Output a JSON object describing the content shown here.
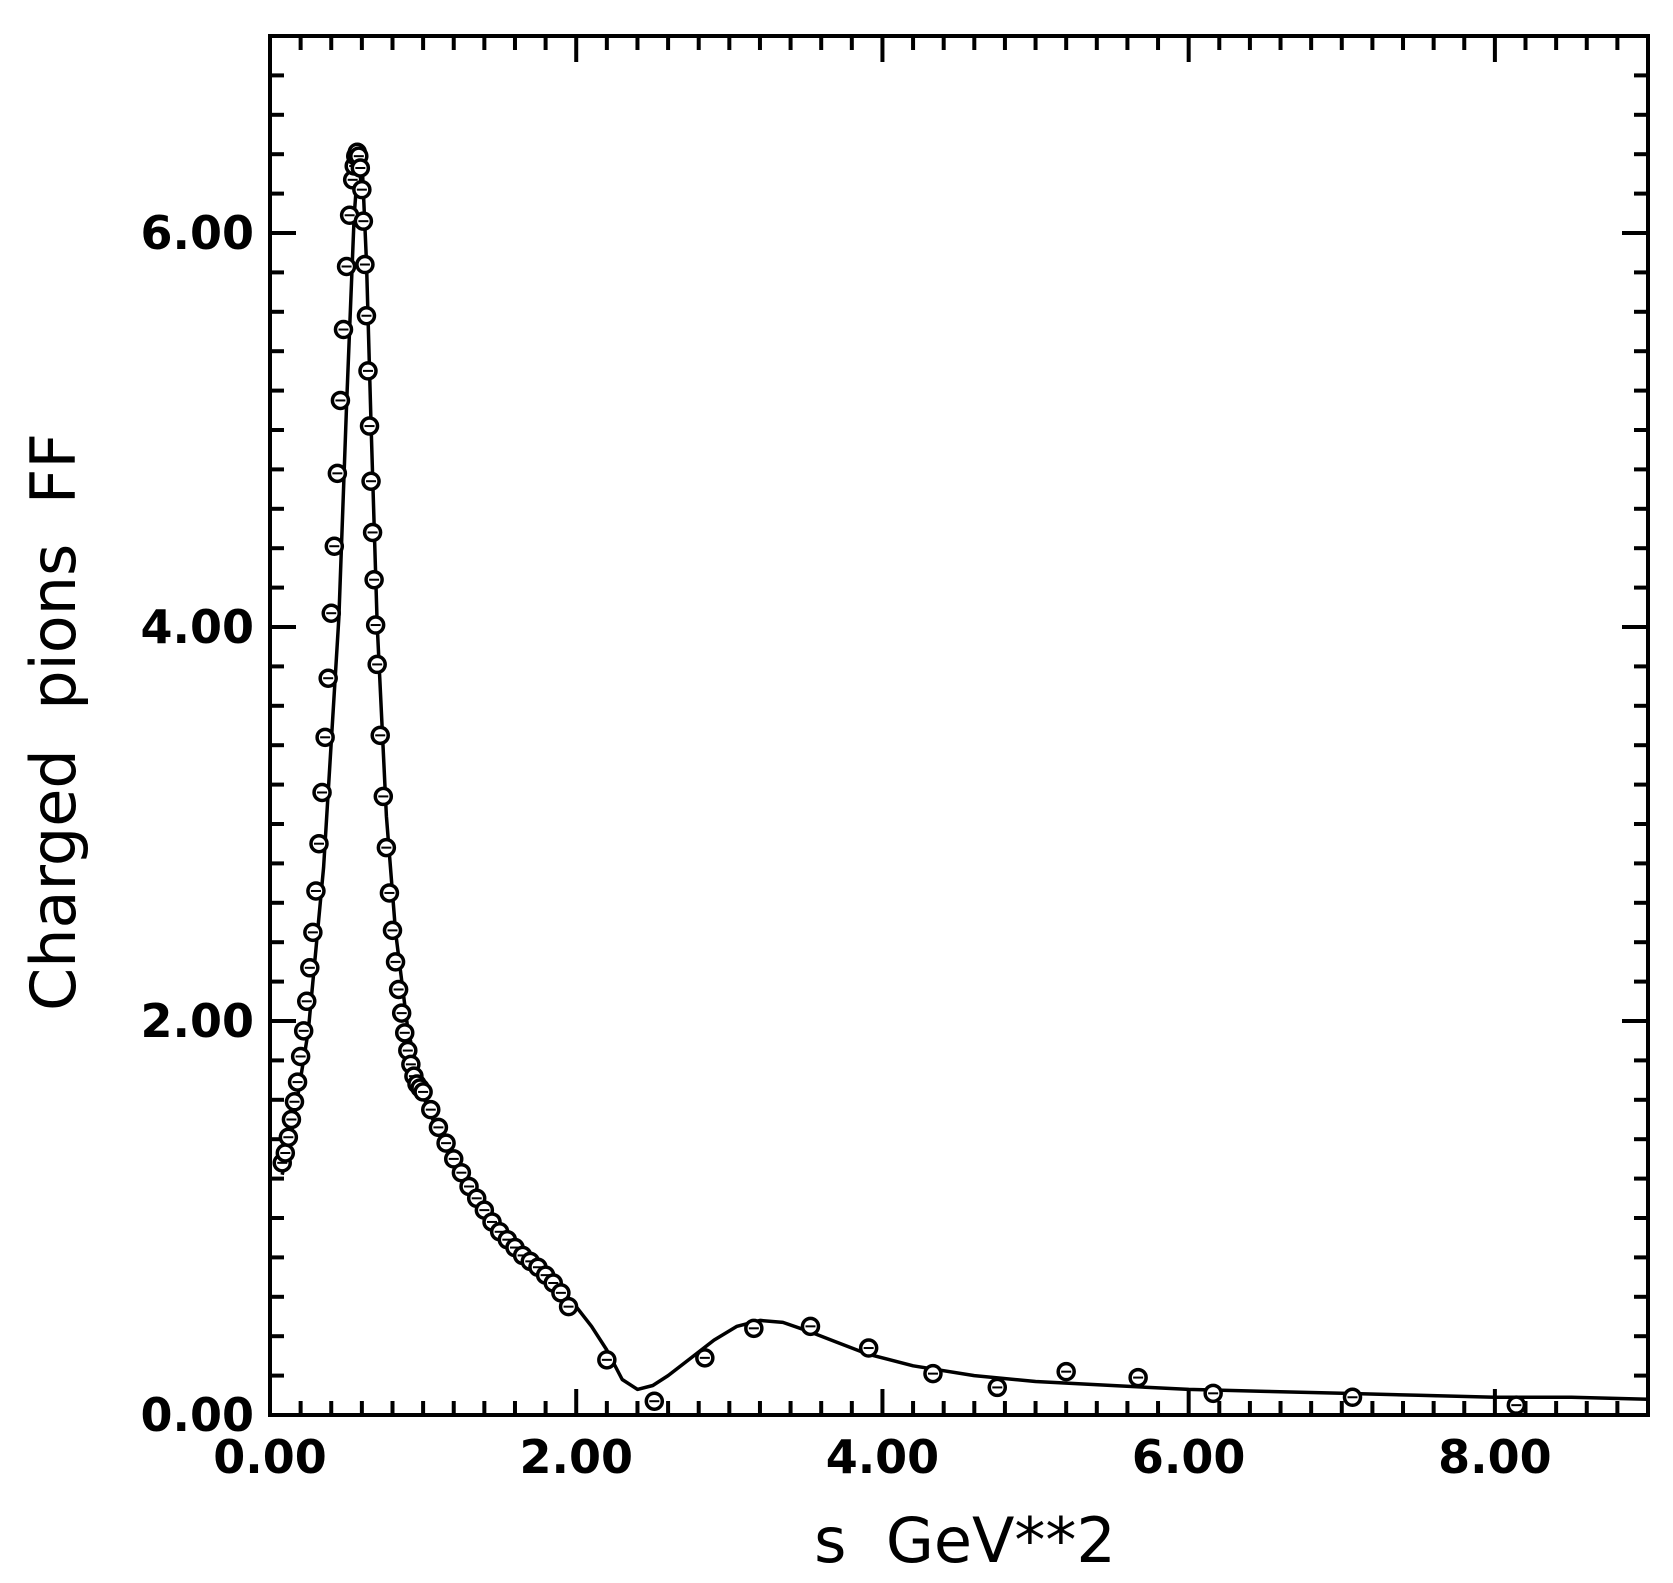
{
  "chart_data": {
    "type": "scatter",
    "title": "",
    "xlabel": "s  GeV**2",
    "ylabel": "Charged  pions  FF",
    "xlim": [
      0,
      9
    ],
    "ylim": [
      0,
      7
    ],
    "x_ticks": [
      {
        "value": 0,
        "label": "0.00"
      },
      {
        "value": 2,
        "label": "2.00"
      },
      {
        "value": 4,
        "label": "4.00"
      },
      {
        "value": 6,
        "label": "6.00"
      },
      {
        "value": 8,
        "label": "8.00"
      }
    ],
    "y_ticks": [
      {
        "value": 0,
        "label": "0.00"
      },
      {
        "value": 2,
        "label": "2.00"
      },
      {
        "value": 4,
        "label": "4.00"
      },
      {
        "value": 6,
        "label": "6.00"
      }
    ],
    "x_minor_step": 0.2,
    "y_minor_step": 0.2,
    "grid": false,
    "legend": "none",
    "series": [
      {
        "kind": "points",
        "marker": "open-circle",
        "x": [
          0.08,
          0.1,
          0.12,
          0.14,
          0.16,
          0.18,
          0.2,
          0.22,
          0.24,
          0.26,
          0.28,
          0.3,
          0.32,
          0.34,
          0.36,
          0.38,
          0.4,
          0.42,
          0.44,
          0.46,
          0.48,
          0.5,
          0.52,
          0.54,
          0.55,
          0.56,
          0.57,
          0.58,
          0.59,
          0.6,
          0.61,
          0.62,
          0.63,
          0.64,
          0.65,
          0.66,
          0.67,
          0.68,
          0.69,
          0.7,
          0.72,
          0.74,
          0.76,
          0.78,
          0.8,
          0.82,
          0.84,
          0.86,
          0.88,
          0.9,
          0.92,
          0.94,
          0.96,
          0.98,
          1.0,
          1.05,
          1.1,
          1.15,
          1.2,
          1.25,
          1.3,
          1.35,
          1.4,
          1.45,
          1.5,
          1.55,
          1.6,
          1.65,
          1.7,
          1.75,
          1.8,
          1.85,
          1.9,
          1.95,
          2.2,
          2.51,
          2.84,
          3.16,
          3.53,
          3.91,
          4.33,
          4.75,
          5.2,
          5.67,
          6.16,
          7.07,
          8.14
        ],
        "y": [
          1.28,
          1.33,
          1.41,
          1.5,
          1.59,
          1.69,
          1.82,
          1.95,
          2.1,
          2.27,
          2.45,
          2.66,
          2.9,
          3.16,
          3.44,
          3.74,
          4.07,
          4.41,
          4.78,
          5.15,
          5.51,
          5.83,
          6.09,
          6.27,
          6.34,
          6.39,
          6.41,
          6.39,
          6.33,
          6.22,
          6.06,
          5.84,
          5.58,
          5.3,
          5.02,
          4.74,
          4.48,
          4.24,
          4.01,
          3.81,
          3.45,
          3.14,
          2.88,
          2.65,
          2.46,
          2.3,
          2.16,
          2.04,
          1.94,
          1.85,
          1.78,
          1.72,
          1.68,
          1.66,
          1.64,
          1.55,
          1.46,
          1.38,
          1.3,
          1.23,
          1.16,
          1.1,
          1.04,
          0.98,
          0.93,
          0.89,
          0.85,
          0.81,
          0.78,
          0.75,
          0.71,
          0.67,
          0.62,
          0.55,
          0.28,
          0.07,
          0.29,
          0.44,
          0.45,
          0.34,
          0.21,
          0.14,
          0.22,
          0.19,
          0.11,
          0.09,
          0.05
        ]
      },
      {
        "kind": "line",
        "x": [
          0.08,
          0.15,
          0.25,
          0.35,
          0.45,
          0.5,
          0.55,
          0.58,
          0.6,
          0.63,
          0.66,
          0.7,
          0.76,
          0.82,
          0.9,
          1.0,
          1.1,
          1.2,
          1.3,
          1.4,
          1.5,
          1.6,
          1.7,
          1.8,
          1.9,
          2.0,
          2.1,
          2.2,
          2.3,
          2.4,
          2.5,
          2.6,
          2.75,
          2.9,
          3.05,
          3.2,
          3.35,
          3.5,
          3.7,
          3.9,
          4.2,
          4.6,
          5.0,
          5.5,
          6.0,
          6.5,
          7.0,
          7.5,
          8.0,
          8.5,
          9.0
        ],
        "y": [
          1.22,
          1.47,
          1.95,
          2.78,
          4.05,
          5.13,
          6.09,
          6.4,
          6.38,
          5.85,
          5.02,
          4.01,
          3.04,
          2.45,
          1.96,
          1.62,
          1.43,
          1.28,
          1.16,
          1.05,
          0.96,
          0.88,
          0.8,
          0.73,
          0.64,
          0.55,
          0.45,
          0.33,
          0.18,
          0.13,
          0.15,
          0.2,
          0.29,
          0.38,
          0.45,
          0.48,
          0.47,
          0.43,
          0.37,
          0.31,
          0.25,
          0.2,
          0.17,
          0.15,
          0.13,
          0.12,
          0.11,
          0.1,
          0.09,
          0.09,
          0.08
        ]
      }
    ]
  }
}
